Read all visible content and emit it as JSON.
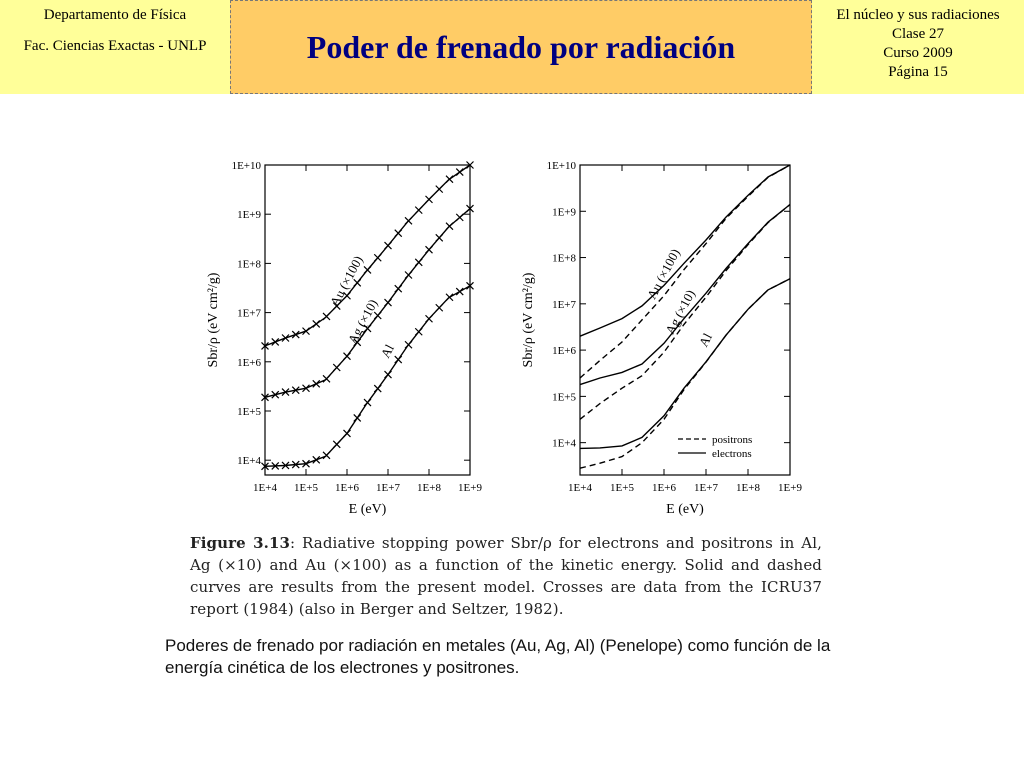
{
  "header": {
    "left_line1": "Departamento de Física",
    "left_line2": "Fac. Ciencias Exactas - UNLP",
    "title": "Poder de frenado por radiación",
    "right_lines": [
      "El núcleo y sus radiaciones",
      "Clase 27",
      "Curso 2009",
      "Página 15"
    ]
  },
  "caption": {
    "fig_label": "Figure 3.13",
    "text": ": Radiative stopping power Sbr/ρ for electrons and positrons in Al, Ag (×10) and Au (×100) as a function of the kinetic energy. Solid and dashed curves are results from the present model. Crosses are data from the ICRU37 report (1984) (also in Berger and Seltzer, 1982)."
  },
  "note": "Poderes de frenado por radiación en metales (Au, Ag, Al) (Penelope) como función de la energía cinética de los electrones y positrones.",
  "chart_data": [
    {
      "type": "line",
      "xscale": "log",
      "yscale": "log",
      "xlabel": "E (eV)",
      "ylabel": "Sbr/ρ (eV cm²/g)",
      "xlim": [
        10000,
        1000000000
      ],
      "ylim": [
        5000,
        10000000000
      ],
      "xticks": [
        "1E+4",
        "1E+5",
        "1E+6",
        "1E+7",
        "1E+8",
        "1E+9"
      ],
      "yticks": [
        "1E+4",
        "1E+5",
        "1E+6",
        "1E+7",
        "1E+8",
        "1E+9",
        "1E+10"
      ],
      "series": [
        {
          "name": "Au (×100)",
          "style": "solid-crosses",
          "x": [
            10000,
            30000,
            100000,
            300000,
            1000000,
            3000000,
            10000000,
            30000000,
            100000000,
            300000000,
            1000000000
          ],
          "y": [
            2100000,
            3000000,
            4200000,
            8000000,
            22000000,
            70000000,
            230000000,
            700000000,
            2000000000,
            5000000000,
            10000000000
          ]
        },
        {
          "name": "Ag (×10)",
          "style": "solid-crosses",
          "x": [
            10000,
            30000,
            100000,
            300000,
            1000000,
            3000000,
            10000000,
            30000000,
            100000000,
            300000000,
            1000000000
          ],
          "y": [
            190000,
            240000,
            290000,
            430000,
            1300000,
            4500000,
            16000000,
            55000000,
            190000000,
            550000000,
            1300000000
          ]
        },
        {
          "name": "Al",
          "style": "solid-crosses",
          "x": [
            10000,
            30000,
            100000,
            300000,
            1000000,
            3000000,
            10000000,
            30000000,
            100000000,
            300000000,
            1000000000
          ],
          "y": [
            7500,
            7800,
            8500,
            12000,
            35000,
            140000,
            550000,
            2100000,
            7500000,
            20000000,
            35000000
          ]
        }
      ]
    },
    {
      "type": "line",
      "xscale": "log",
      "yscale": "log",
      "xlabel": "E (eV)",
      "ylabel": "Sbr/ρ (eV cm²/g)",
      "xlim": [
        10000,
        1000000000
      ],
      "ylim": [
        2000,
        10000000000
      ],
      "xticks": [
        "1E+4",
        "1E+5",
        "1E+6",
        "1E+7",
        "1E+8",
        "1E+9"
      ],
      "yticks": [
        "1E+4",
        "1E+5",
        "1E+6",
        "1E+7",
        "1E+8",
        "1E+9",
        "1E+10"
      ],
      "legend": {
        "placement": "bottom-right",
        "entries": [
          {
            "label": "positrons",
            "style": "dashed"
          },
          {
            "label": "electrons",
            "style": "solid"
          }
        ]
      },
      "series": [
        {
          "name": "Au (×100)",
          "style": "solid",
          "x": [
            10000,
            30000,
            100000,
            300000,
            1000000,
            3000000,
            10000000,
            30000000,
            100000000,
            300000000,
            1000000000
          ],
          "y": [
            2000000,
            3000000,
            4800000,
            9000000,
            25000000,
            75000000,
            240000000,
            750000000,
            2200000000,
            5500000000,
            10000000000
          ]
        },
        {
          "name": "Au (×100)",
          "style": "dashed",
          "x": [
            10000,
            30000,
            100000,
            300000,
            1000000,
            3000000,
            10000000,
            30000000,
            100000000,
            300000000,
            1000000000
          ],
          "y": [
            250000,
            600000,
            1500000,
            4500000,
            15000000,
            55000000,
            200000000,
            700000000,
            2100000000,
            5400000000,
            10000000000
          ]
        },
        {
          "name": "Ag (×10)",
          "style": "solid",
          "x": [
            10000,
            30000,
            100000,
            300000,
            1000000,
            3000000,
            10000000,
            30000000,
            100000000,
            300000000,
            1000000000
          ],
          "y": [
            180000,
            250000,
            330000,
            500000,
            1400000,
            4800000,
            17000000,
            58000000,
            200000000,
            580000000,
            1400000000
          ]
        },
        {
          "name": "Ag (×10)",
          "style": "dashed",
          "x": [
            10000,
            30000,
            100000,
            300000,
            1000000,
            3000000,
            10000000,
            30000000,
            100000000,
            300000000,
            1000000000
          ],
          "y": [
            32000,
            70000,
            150000,
            280000,
            900000,
            3600000,
            14000000,
            52000000,
            190000000,
            570000000,
            1400000000
          ]
        },
        {
          "name": "Al",
          "style": "solid",
          "x": [
            10000,
            30000,
            100000,
            300000,
            1000000,
            3000000,
            10000000,
            30000000,
            100000000,
            300000000,
            1000000000
          ],
          "y": [
            7500,
            7700,
            8500,
            13000,
            38000,
            150000,
            560000,
            2100000,
            7600000,
            20000000,
            35000000
          ]
        },
        {
          "name": "Al",
          "style": "dashed",
          "x": [
            10000,
            30000,
            100000,
            300000,
            1000000,
            3000000,
            10000000,
            30000000,
            100000000,
            300000000,
            1000000000
          ],
          "y": [
            2800,
            3600,
            5000,
            10000,
            32000,
            140000,
            550000,
            2100000,
            7600000,
            20000000,
            35000000
          ]
        }
      ]
    }
  ]
}
